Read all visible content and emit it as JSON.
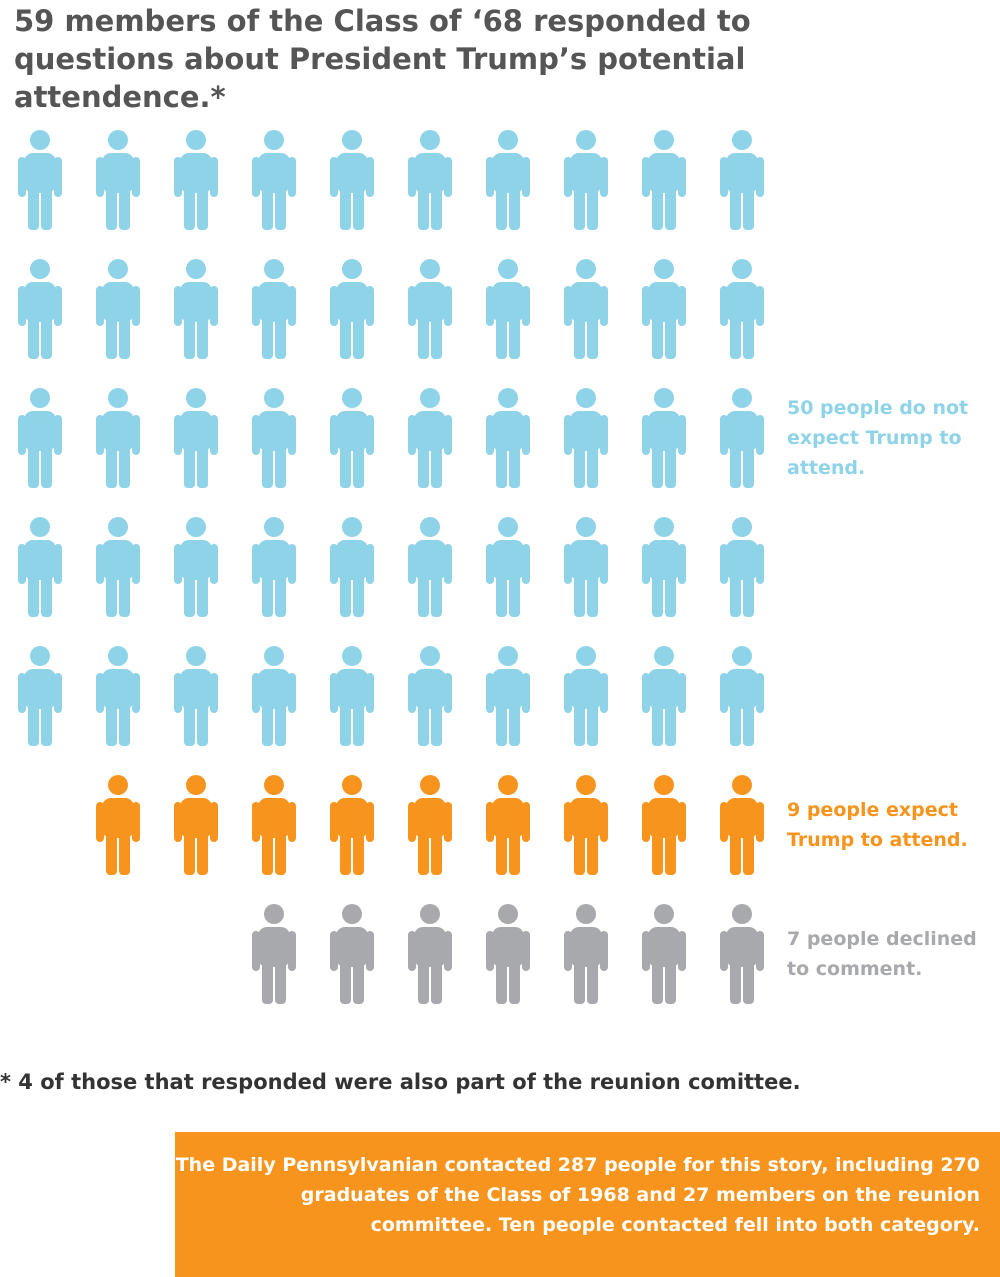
{
  "chart_data": {
    "type": "pictograph",
    "title": "59 members of the Class of ‘68 responded to questions about President Trump’s potential attendence.*",
    "series": [
      {
        "name": "50 people do not expect Trump to attend.",
        "color": "#8fd3e8",
        "values": [
          50
        ]
      },
      {
        "name": "9 people expect Trump to attend.",
        "color": "#f7941d",
        "values": [
          9
        ]
      },
      {
        "name": "7 people declined to comment.",
        "color": "#a7a9ac",
        "values": [
          7
        ]
      }
    ],
    "footnote": "* 4 of those that responded were also part of the reunion comittee.",
    "note": "The Daily Pennsylvanian contacted 287 people for this story, including 270 graduates of the Class of 1968 and 27 members on the reunion committee. Ten people contacted fell into both category."
  }
}
